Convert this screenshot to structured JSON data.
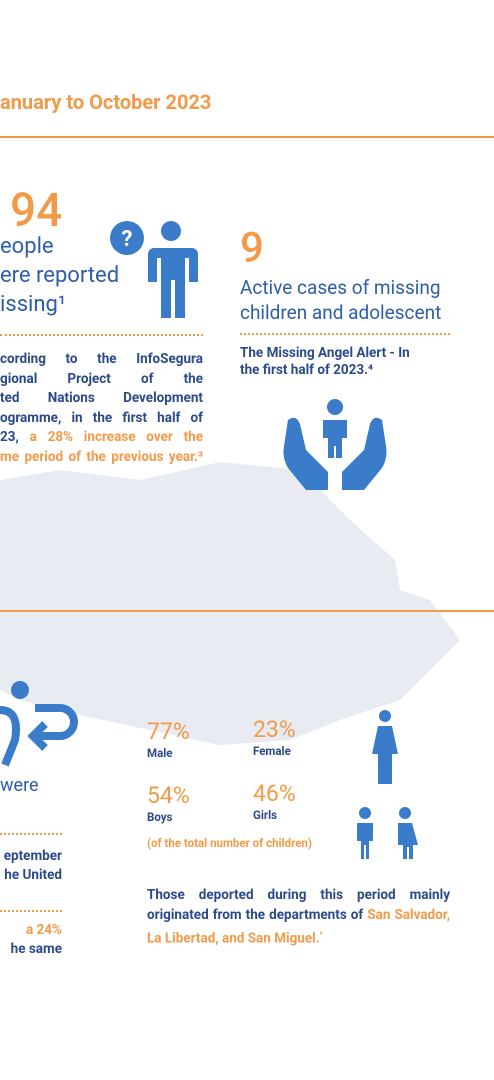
{
  "header": {
    "title": "anuary to October 2023"
  },
  "missing": {
    "number": "94",
    "lines": [
      "eople",
      "ere reported",
      "issing¹"
    ],
    "paragraph": {
      "lines": [
        "cording to the InfoSegura",
        "gional Project of the",
        "ted Nations Development",
        "ogramme, in the first half of"
      ],
      "lead": "23, ",
      "highlight": "a 28% increase over the",
      "highlight_end": "me period of the previous year.³"
    }
  },
  "cases": {
    "number": "9",
    "label": "Active cases of missing children and adolescent",
    "note": "The Missing Angel Alert - In the first half of 2023.⁴"
  },
  "deported": {
    "fragment": "were",
    "text_1": [
      "eptember",
      "he United"
    ],
    "text_2": [
      "a 24%",
      "he same"
    ],
    "stats": [
      {
        "value": "77%",
        "label": "Male"
      },
      {
        "value": "23%",
        "label": "Female"
      },
      {
        "value": "54%",
        "label": "Boys"
      },
      {
        "value": "46%",
        "label": "Girls"
      }
    ],
    "stats_note": "(of the total number of children)",
    "origin": {
      "text": "Those deported during this period mainly originated from the departments of ",
      "highlight": "San Salvador, La Libertad, and San Miguel.",
      "footnote": "⁵"
    }
  }
}
